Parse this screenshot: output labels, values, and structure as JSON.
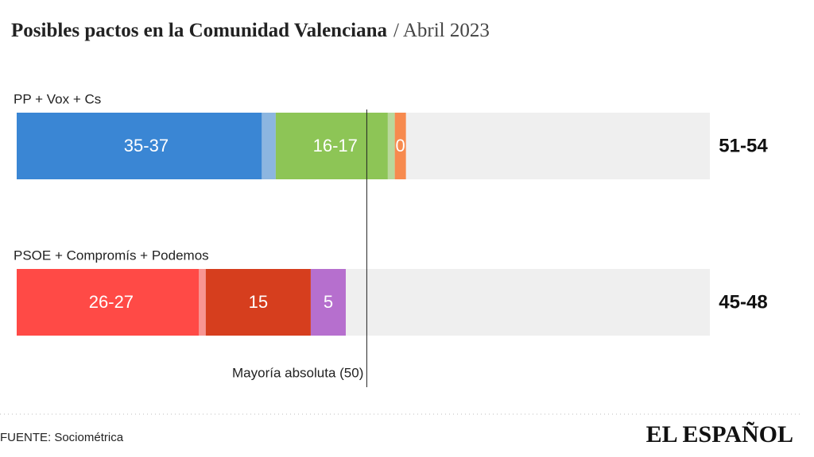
{
  "chart_data": {
    "type": "range-stack",
    "title": "Posibles pactos en la Comunidad Valenciana",
    "subtitle": "/ Abril 2023",
    "xlim": [
      0,
      99
    ],
    "threshold": {
      "value": 50,
      "label": "Mayoría absoluta (50)"
    },
    "groups": [
      {
        "name": "PP + Vox + Cs",
        "total_label": "51-54",
        "total_min": 51,
        "total_max": 54,
        "segments": [
          {
            "label": "35-37",
            "min": 35,
            "max": 37,
            "color": "#3a86d4"
          },
          {
            "label": "16-17",
            "min": 16,
            "max": 17,
            "color": "#8dc556"
          },
          {
            "label": "0",
            "min": 0,
            "max": 0,
            "color": "#f78a4e"
          }
        ]
      },
      {
        "name": "PSOE + Compromís + Podemos",
        "total_label": "45-48",
        "total_min": 45,
        "total_max": 48,
        "segments": [
          {
            "label": "26-27",
            "min": 26,
            "max": 27,
            "color": "#ff4a46"
          },
          {
            "label": "15",
            "min": 15,
            "max": 15,
            "color": "#d63e1e"
          },
          {
            "label": "5",
            "min": 5,
            "max": 5,
            "color": "#b66fce"
          }
        ]
      }
    ],
    "source": "FUENTE: Sociométrica",
    "logo": "EL ESPAÑOL"
  }
}
